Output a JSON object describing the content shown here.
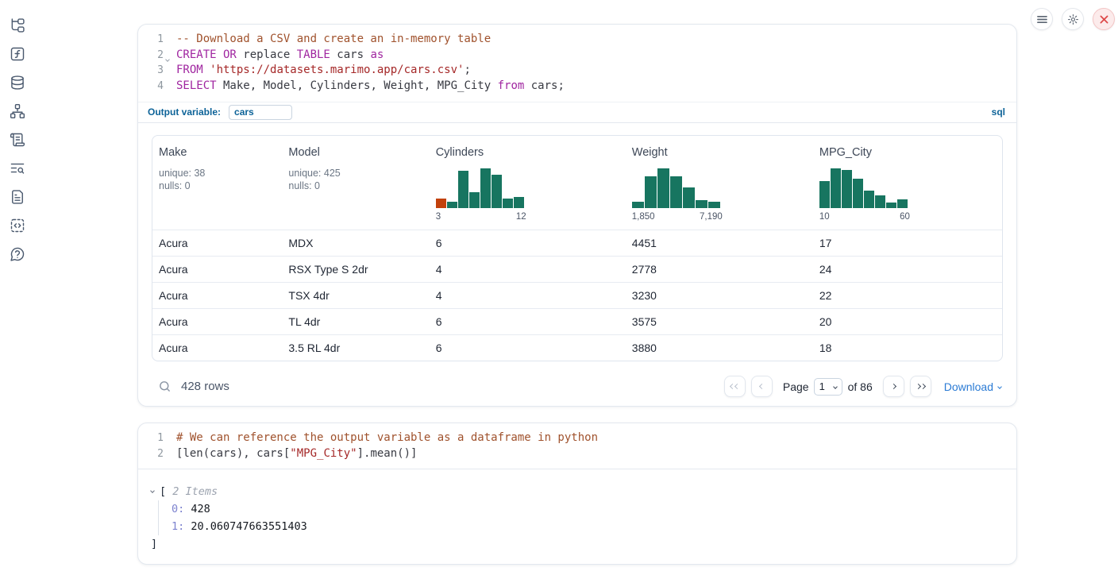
{
  "topbar": {
    "buttons": [
      {
        "icon": "menu-icon"
      },
      {
        "icon": "gear-icon"
      },
      {
        "icon": "close-icon"
      }
    ]
  },
  "sidebar": {
    "items": [
      {
        "icon": "file-tree-icon"
      },
      {
        "icon": "function-square-icon"
      },
      {
        "icon": "database-icon"
      },
      {
        "icon": "dependency-graph-icon"
      },
      {
        "icon": "scroll-text-icon"
      },
      {
        "icon": "text-search-icon"
      },
      {
        "icon": "file-text-icon"
      },
      {
        "icon": "code-snippet-icon"
      },
      {
        "icon": "help-bubble-icon"
      }
    ]
  },
  "sql_cell": {
    "language_badge": "sql",
    "output_variable_label": "Output variable:",
    "output_variable_value": "cars",
    "lines": [
      {
        "num": "1",
        "tokens": [
          {
            "t": "-- Download a CSV and create an in-memory table",
            "c": "com"
          }
        ]
      },
      {
        "num": "2",
        "fold": true,
        "tokens": [
          {
            "t": "CREATE OR",
            "c": "kw"
          },
          {
            "t": " replace ",
            "c": "pl"
          },
          {
            "t": "TABLE",
            "c": "kw"
          },
          {
            "t": " cars ",
            "c": "pl"
          },
          {
            "t": "as",
            "c": "kw"
          }
        ]
      },
      {
        "num": "3",
        "tokens": [
          {
            "t": "FROM",
            "c": "kw"
          },
          {
            "t": " ",
            "c": "pl"
          },
          {
            "t": "'https://datasets.marimo.app/cars.csv'",
            "c": "str"
          },
          {
            "t": ";",
            "c": "pl"
          }
        ]
      },
      {
        "num": "4",
        "tokens": [
          {
            "t": "SELECT",
            "c": "kw"
          },
          {
            "t": " Make, Model, Cylinders, Weight, MPG_City ",
            "c": "pl"
          },
          {
            "t": "from",
            "c": "kw"
          },
          {
            "t": " cars;",
            "c": "pl"
          }
        ]
      }
    ]
  },
  "table": {
    "columns": [
      {
        "name": "Make",
        "meta": [
          "unique: 38",
          "nulls: 0"
        ]
      },
      {
        "name": "Model",
        "meta": [
          "unique: 425",
          "nulls: 0"
        ]
      },
      {
        "name": "Cylinders",
        "hist": 0
      },
      {
        "name": "Weight",
        "hist": 1
      },
      {
        "name": "MPG_City",
        "hist": 2
      }
    ],
    "rows": [
      [
        "Acura",
        "MDX",
        "6",
        "4451",
        "17"
      ],
      [
        "Acura",
        "RSX Type S 2dr",
        "4",
        "2778",
        "24"
      ],
      [
        "Acura",
        "TSX 4dr",
        "4",
        "3230",
        "22"
      ],
      [
        "Acura",
        "TL 4dr",
        "6",
        "3575",
        "20"
      ],
      [
        "Acura",
        "3.5 RL 4dr",
        "6",
        "3880",
        "18"
      ]
    ],
    "footer": {
      "row_count": "428 rows",
      "page_label": "Page",
      "page_value": "1",
      "of_label": "of 86",
      "download_label": "Download"
    }
  },
  "chart_data": [
    {
      "type": "bar",
      "title": "Cylinders column summary histogram",
      "x_labels": [
        "3",
        "12"
      ],
      "relative_heights": [
        0.24,
        0.16,
        0.94,
        0.4,
        1.0,
        0.84,
        0.24,
        0.28
      ],
      "bar_color": "#177560",
      "highlight_index": 0,
      "highlight_color": "#c2410c"
    },
    {
      "type": "bar",
      "title": "Weight column summary histogram",
      "x_labels": [
        "1,850",
        "7,190"
      ],
      "relative_heights": [
        0.15,
        0.8,
        1.0,
        0.8,
        0.52,
        0.19,
        0.15
      ],
      "bar_color": "#177560",
      "highlight_index": null,
      "highlight_color": null
    },
    {
      "type": "bar",
      "title": "MPG_City column summary histogram",
      "x_labels": [
        "10",
        "60"
      ],
      "relative_heights": [
        0.68,
        1.0,
        0.96,
        0.74,
        0.43,
        0.32,
        0.13,
        0.21
      ],
      "bar_color": "#177560",
      "highlight_index": null,
      "highlight_color": null
    }
  ],
  "python_cell": {
    "lines": [
      {
        "num": "1",
        "tokens": [
          {
            "t": "# We can reference the output variable as a dataframe in python",
            "c": "com"
          }
        ]
      },
      {
        "num": "2",
        "tokens": [
          {
            "t": "[len(cars), cars[",
            "c": "pl"
          },
          {
            "t": "\"MPG_City\"",
            "c": "str"
          },
          {
            "t": "].mean()]",
            "c": "pl"
          }
        ]
      }
    ]
  },
  "list_output": {
    "bracket_open": "[",
    "items_label": "2 Items",
    "entries": [
      {
        "index": "0:",
        "value": "428"
      },
      {
        "index": "1:",
        "value": "20.060747663551403"
      }
    ],
    "bracket_close": "]"
  }
}
